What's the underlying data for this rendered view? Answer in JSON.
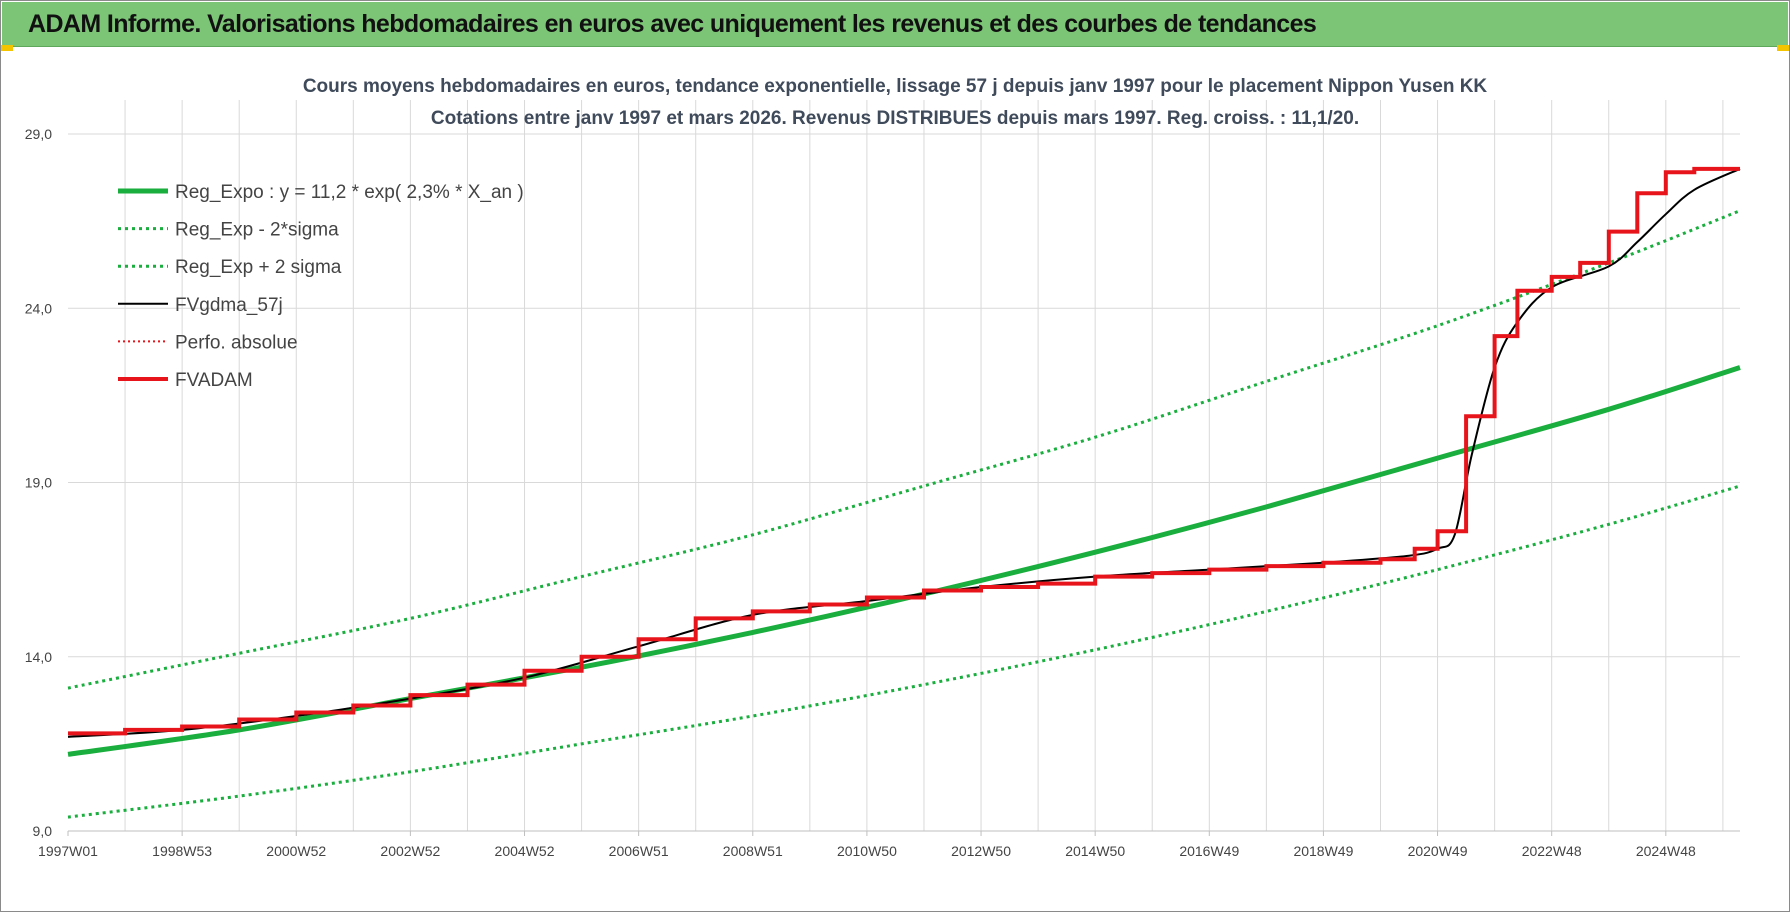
{
  "banner": {
    "title": "ADAM Informe. Valorisations hebdomadaires en euros avec uniquement les revenus et des courbes de tendances"
  },
  "chart_data": {
    "type": "line",
    "title_lines": [
      "Cours moyens hebdomadaires en euros, tendance exponentielle, lissage 57 j depuis janv 1997 pour le placement Nippon Yusen KK",
      "Cotations entre janv 1997 et mars 2026. Revenus DISTRIBUES depuis mars 1997. Reg. croiss. : 11,1/20."
    ],
    "xlabel": "",
    "ylabel": "",
    "ylim": [
      9.0,
      29.0
    ],
    "xlim": [
      1997.0,
      2026.3
    ],
    "y_ticks": [
      "9,0",
      "14,0",
      "19,0",
      "24,0",
      "29,0"
    ],
    "y_tick_values": [
      9,
      14,
      19,
      24,
      29
    ],
    "x_ticks": [
      "1997W01",
      "1998W53",
      "2000W52",
      "2002W52",
      "2004W52",
      "2006W51",
      "2008W51",
      "2010W50",
      "2012W50",
      "2014W50",
      "2016W49",
      "2018W49",
      "2020W49",
      "2022W48",
      "2024W48"
    ],
    "x_tick_years": [
      1997.0,
      1999.0,
      2001.0,
      2003.0,
      2005.0,
      2007.0,
      2009.0,
      2011.0,
      2013.0,
      2015.0,
      2017.0,
      2019.0,
      2021.0,
      2023.0,
      2025.0
    ],
    "grid": true,
    "legend_position": "top-left",
    "colors": {
      "green": "#1aae3e",
      "red": "#e8141b",
      "black": "#000000",
      "grid": "#d9d9d9"
    },
    "series": [
      {
        "name": "Reg_Expo : y = 11,2 * exp( 2,3% *  X_an )",
        "style": "solid-thick",
        "color": "#1aae3e",
        "x": [
          1997.0,
          2000.0,
          2003.0,
          2006.0,
          2009.0,
          2012.0,
          2015.0,
          2018.0,
          2021.0,
          2024.0,
          2026.3
        ],
        "values": [
          11.2,
          11.9,
          12.8,
          13.7,
          14.7,
          15.8,
          17.0,
          18.3,
          19.7,
          21.1,
          22.3
        ]
      },
      {
        "name": "Reg_Exp - 2*sigma",
        "style": "dotted",
        "color": "#1aae3e",
        "x": [
          1997.0,
          2000.0,
          2003.0,
          2006.0,
          2009.0,
          2012.0,
          2015.0,
          2018.0,
          2021.0,
          2024.0,
          2026.3
        ],
        "values": [
          9.4,
          10.0,
          10.7,
          11.5,
          12.3,
          13.2,
          14.2,
          15.3,
          16.5,
          17.8,
          18.9
        ]
      },
      {
        "name": "Reg_Exp + 2 sigma",
        "style": "dotted",
        "color": "#1aae3e",
        "x": [
          1997.0,
          2000.0,
          2003.0,
          2006.0,
          2009.0,
          2012.0,
          2015.0,
          2018.0,
          2021.0,
          2024.0,
          2026.3
        ],
        "values": [
          13.1,
          14.1,
          15.1,
          16.3,
          17.5,
          18.9,
          20.3,
          21.9,
          23.5,
          25.3,
          26.8
        ]
      },
      {
        "name": "FVgdma_57j",
        "style": "solid-thin",
        "color": "#000000",
        "x": [
          1997.0,
          1999.0,
          2001.0,
          2003.0,
          2005.0,
          2007.0,
          2009.0,
          2011.0,
          2013.0,
          2015.0,
          2017.0,
          2019.0,
          2020.5,
          2021.0,
          2021.3,
          2021.6,
          2022.0,
          2022.4,
          2023.0,
          2024.0,
          2024.5,
          2025.0,
          2025.5,
          2026.3
        ],
        "values": [
          11.7,
          11.9,
          12.3,
          12.8,
          13.4,
          14.3,
          15.2,
          15.6,
          16.0,
          16.3,
          16.5,
          16.7,
          16.9,
          17.1,
          17.5,
          19.8,
          22.3,
          23.6,
          24.6,
          25.2,
          25.9,
          26.7,
          27.4,
          28.0
        ]
      },
      {
        "name": "Perfo. absolue",
        "style": "dotted-thin",
        "color": "#e8141b",
        "x": [],
        "values": []
      },
      {
        "name": "FVADAM",
        "style": "step-thick",
        "color": "#e8141b",
        "x": [
          1997.0,
          1998.0,
          1999.0,
          2000.0,
          2001.0,
          2002.0,
          2003.0,
          2004.0,
          2005.0,
          2006.0,
          2007.0,
          2008.0,
          2009.0,
          2010.0,
          2011.0,
          2012.0,
          2013.0,
          2014.0,
          2015.0,
          2016.0,
          2017.0,
          2018.0,
          2019.0,
          2020.0,
          2020.6,
          2021.0,
          2021.5,
          2022.0,
          2022.4,
          2023.0,
          2023.5,
          2024.0,
          2024.5,
          2025.0,
          2025.5,
          2026.3
        ],
        "values": [
          11.8,
          11.9,
          12.0,
          12.2,
          12.4,
          12.6,
          12.9,
          13.2,
          13.6,
          14.0,
          14.5,
          15.1,
          15.3,
          15.5,
          15.7,
          15.9,
          16.0,
          16.1,
          16.3,
          16.4,
          16.5,
          16.6,
          16.7,
          16.8,
          17.1,
          17.6,
          20.9,
          23.2,
          24.5,
          24.9,
          25.3,
          26.2,
          27.3,
          27.9,
          28.0,
          28.0
        ]
      }
    ]
  }
}
